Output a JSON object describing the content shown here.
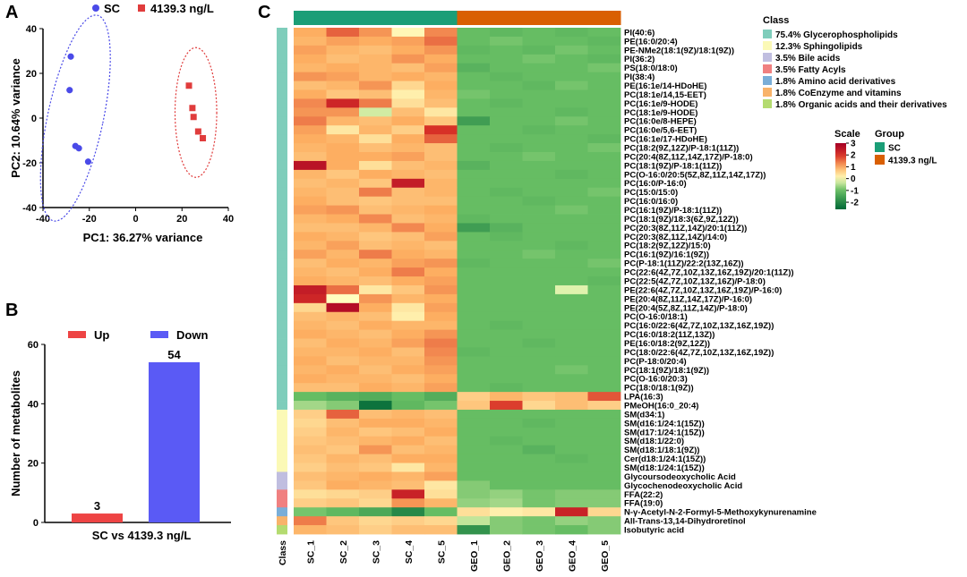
{
  "chart_data": [
    {
      "panel": "A",
      "type": "scatter",
      "xlabel": "PC1: 36.27% variance",
      "ylabel": "PC2: 10.64% variance",
      "xlim": [
        -40,
        40
      ],
      "ylim": [
        -40,
        40
      ],
      "xticks": [
        -40,
        -20,
        0,
        20,
        40
      ],
      "yticks": [
        -40,
        -20,
        0,
        20,
        40
      ],
      "legend_position": "top",
      "series": [
        {
          "name": "SC",
          "color": "#4a4ae8",
          "marker": "circle",
          "points": [
            [
              -28,
              27.5
            ],
            [
              -28.5,
              12.5
            ],
            [
              -26,
              -12.5
            ],
            [
              -24.5,
              -13.5
            ],
            [
              -20.5,
              -19.5
            ]
          ]
        },
        {
          "name": "4139.3 ng/L",
          "color": "#e03c3c",
          "marker": "square",
          "points": [
            [
              23,
              14.5
            ],
            [
              24.5,
              4.5
            ],
            [
              25,
              0.5
            ],
            [
              27,
              -6
            ],
            [
              29,
              -9
            ]
          ]
        }
      ]
    },
    {
      "panel": "B",
      "type": "bar",
      "ylabel": "Number of metabolites",
      "xlabel": "SC vs 4139.3 ng/L",
      "ylim": [
        0,
        60
      ],
      "yticks": [
        0,
        20,
        40,
        60
      ],
      "legend_position": "top",
      "series": [
        {
          "name": "Up",
          "value": 3,
          "color": "#ee4444"
        },
        {
          "name": "Down",
          "value": 54,
          "color": "#5a5af5"
        }
      ]
    },
    {
      "panel": "C",
      "type": "heatmap",
      "columns": [
        "SC_1",
        "SC_2",
        "SC_3",
        "SC_4",
        "SC_5",
        "GEO_1",
        "GEO_2",
        "GEO_3",
        "GEO_4",
        "GEO_5"
      ],
      "column_groups": [
        "SC",
        "SC",
        "SC",
        "SC",
        "SC",
        "4139.3 ng/L",
        "4139.3 ng/L",
        "4139.3 ng/L",
        "4139.3 ng/L",
        "4139.3 ng/L"
      ],
      "class_axis_label": "Class",
      "rows": [
        "PI(40:6)",
        "PE(16:0/20:4)",
        "PE-NMe2(18:1(9Z)/18:1(9Z))",
        "PI(36:2)",
        "PS(18:0/18:0)",
        "PI(38:4)",
        "PE(16:1e/14-HDoHE)",
        "PC(18:1e/14,15-EET)",
        "PC(16:1e/9-HODE)",
        "PC(18:1e/9-HODE)",
        "PC(16:0e/8-HEPE)",
        "PC(16:0e/5,6-EET)",
        "PC(16:1e/17-HDoHE)",
        "PC(18:2(9Z,12Z)/P-18:1(11Z))",
        "PC(20:4(8Z,11Z,14Z,17Z)/P-18:0)",
        "PC(18:1(9Z)/P-18:1(11Z))",
        "PC(O-16:0/20:5(5Z,8Z,11Z,14Z,17Z))",
        "PC(16:0/P-16:0)",
        "PC(15:0/15:0)",
        "PC(16:0/16:0)",
        "PC(16:1(9Z)/P-18:1(11Z))",
        "PC(18:1(9Z)/18:3(6Z,9Z,12Z))",
        "PC(20:3(8Z,11Z,14Z)/20:1(11Z))",
        "PC(20:3(8Z,11Z,14Z)/14:0)",
        "PC(18:2(9Z,12Z)/15:0)",
        "PC(16:1(9Z)/16:1(9Z))",
        "PC(P-18:1(11Z)/22:2(13Z,16Z))",
        "PC(22:6(4Z,7Z,10Z,13Z,16Z,19Z)/20:1(11Z))",
        "PC(22:5(4Z,7Z,10Z,13Z,16Z)/P-18:0)",
        "PE(22:6(4Z,7Z,10Z,13Z,16Z,19Z)/P-16:0)",
        "PE(20:4(8Z,11Z,14Z,17Z)/P-16:0)",
        "PE(20:4(5Z,8Z,11Z,14Z)/P-18:0)",
        "PC(O-16:0/18:1)",
        "PC(16:0/22:6(4Z,7Z,10Z,13Z,16Z,19Z))",
        "PC(16:0/18:2(11Z,13Z))",
        "PE(16:0/18:2(9Z,12Z))",
        "PC(18:0/22:6(4Z,7Z,10Z,13Z,16Z,19Z))",
        "PC(P-18:0/20:4)",
        "PC(18:1(9Z)/18:1(9Z))",
        "PC(O-16:0/20:3)",
        "PC(18:0/18:1(9Z))",
        "LPA(16:3)",
        "PMeOH(16:0_20:4)",
        "SM(d34:1)",
        "SM(d16:1/24:1(15Z))",
        "SM(d17:1/24:1(15Z))",
        "SM(d18:1/22:0)",
        "SM(d18:1/18:1(9Z))",
        "Cer(d18:1/24:1(15Z))",
        "SM(d18:1/24:1(15Z))",
        "Glycoursodeoxycholic Acid",
        "Glycochenodeoxycholic Acid",
        "FFA(22:2)",
        "FFA(19:0)",
        "N-γ-Acetyl-N-2-Formyl-5-Methoxykynurenamine",
        "All-Trans-13,14-Dihydroretinol",
        "Isobutyric acid"
      ],
      "row_classes": [
        "Glycerophospholipids",
        "Glycerophospholipids",
        "Glycerophospholipids",
        "Glycerophospholipids",
        "Glycerophospholipids",
        "Glycerophospholipids",
        "Glycerophospholipids",
        "Glycerophospholipids",
        "Glycerophospholipids",
        "Glycerophospholipids",
        "Glycerophospholipids",
        "Glycerophospholipids",
        "Glycerophospholipids",
        "Glycerophospholipids",
        "Glycerophospholipids",
        "Glycerophospholipids",
        "Glycerophospholipids",
        "Glycerophospholipids",
        "Glycerophospholipids",
        "Glycerophospholipids",
        "Glycerophospholipids",
        "Glycerophospholipids",
        "Glycerophospholipids",
        "Glycerophospholipids",
        "Glycerophospholipids",
        "Glycerophospholipids",
        "Glycerophospholipids",
        "Glycerophospholipids",
        "Glycerophospholipids",
        "Glycerophospholipids",
        "Glycerophospholipids",
        "Glycerophospholipids",
        "Glycerophospholipids",
        "Glycerophospholipids",
        "Glycerophospholipids",
        "Glycerophospholipids",
        "Glycerophospholipids",
        "Glycerophospholipids",
        "Glycerophospholipids",
        "Glycerophospholipids",
        "Glycerophospholipids",
        "Glycerophospholipids",
        "Glycerophospholipids",
        "Sphingolipids",
        "Sphingolipids",
        "Sphingolipids",
        "Sphingolipids",
        "Sphingolipids",
        "Sphingolipids",
        "Sphingolipids",
        "Bile acids",
        "Bile acids",
        "Fatty Acyls",
        "Fatty Acyls",
        "Amino acid derivatives",
        "CoEnzyme and vitamins",
        "Organic acids and their derivatives"
      ],
      "values": [
        [
          1.0,
          1.6,
          1.2,
          0.1,
          1.3,
          -1.0,
          -1.1,
          -1.0,
          -1.1,
          -1.0
        ],
        [
          0.9,
          1.1,
          1.0,
          1.1,
          1.5,
          -1.0,
          -0.9,
          -1.0,
          -1.0,
          -1.1
        ],
        [
          1.1,
          0.9,
          0.8,
          1.0,
          1.2,
          -1.1,
          -1.0,
          -1.1,
          -0.9,
          -1.0
        ],
        [
          1.0,
          0.8,
          0.9,
          1.2,
          1.0,
          -1.0,
          -1.0,
          -0.9,
          -1.0,
          -1.1
        ],
        [
          0.9,
          1.0,
          0.9,
          0.8,
          1.1,
          -1.2,
          -1.0,
          -1.0,
          -1.0,
          -0.9
        ],
        [
          1.2,
          1.1,
          0.9,
          1.0,
          0.9,
          -1.0,
          -1.1,
          -1.0,
          -1.0,
          -1.0
        ],
        [
          0.8,
          0.9,
          1.2,
          0.5,
          1.0,
          -1.0,
          -1.0,
          -1.1,
          -0.9,
          -1.0
        ],
        [
          1.0,
          0.7,
          0.8,
          0.2,
          0.9,
          -0.9,
          -1.0,
          -1.0,
          -1.0,
          -1.0
        ],
        [
          1.3,
          2.2,
          1.4,
          0.4,
          0.8,
          -1.0,
          -1.1,
          -1.0,
          -1.0,
          -1.0
        ],
        [
          1.2,
          1.2,
          -0.3,
          0.8,
          0.3,
          -1.0,
          -1.0,
          -1.0,
          -1.1,
          -1.0
        ],
        [
          1.4,
          0.9,
          0.8,
          1.0,
          0.7,
          -1.6,
          -1.0,
          -1.0,
          -0.9,
          -1.0
        ],
        [
          1.1,
          0.3,
          0.9,
          0.6,
          2.0,
          -1.0,
          -1.0,
          -1.1,
          -1.0,
          -1.0
        ],
        [
          1.0,
          0.9,
          0.4,
          1.0,
          1.6,
          -1.0,
          -1.0,
          -1.0,
          -1.0,
          -1.1
        ],
        [
          0.9,
          1.0,
          0.8,
          0.9,
          0.8,
          -1.0,
          -1.1,
          -1.0,
          -1.0,
          -0.9
        ],
        [
          0.8,
          1.0,
          1.0,
          1.1,
          0.8,
          -1.0,
          -1.0,
          -0.9,
          -1.0,
          -1.0
        ],
        [
          2.6,
          1.0,
          0.4,
          0.8,
          0.9,
          -1.2,
          -1.0,
          -1.0,
          -1.0,
          -1.0
        ],
        [
          0.9,
          0.7,
          1.0,
          0.9,
          0.8,
          -1.0,
          -1.0,
          -1.0,
          -1.1,
          -1.0
        ],
        [
          0.8,
          0.9,
          0.7,
          2.4,
          0.9,
          -1.0,
          -1.0,
          -1.0,
          -1.0,
          -1.0
        ],
        [
          0.9,
          0.8,
          1.4,
          0.8,
          0.9,
          -1.0,
          -1.1,
          -1.0,
          -1.0,
          -0.9
        ],
        [
          1.0,
          0.8,
          0.7,
          0.8,
          0.8,
          -1.0,
          -1.0,
          -1.1,
          -1.0,
          -1.0
        ],
        [
          1.1,
          1.2,
          0.8,
          0.9,
          1.0,
          -1.0,
          -1.0,
          -1.0,
          -0.9,
          -1.0
        ],
        [
          0.9,
          1.0,
          1.3,
          0.8,
          0.9,
          -1.1,
          -1.0,
          -1.0,
          -1.0,
          -1.0
        ],
        [
          0.8,
          0.8,
          0.9,
          1.3,
          1.0,
          -1.6,
          -1.2,
          -1.0,
          -1.0,
          -1.0
        ],
        [
          1.0,
          0.9,
          0.7,
          0.8,
          1.1,
          -1.0,
          -1.1,
          -1.0,
          -1.0,
          -1.0
        ],
        [
          0.9,
          1.1,
          0.8,
          0.9,
          0.8,
          -1.0,
          -1.0,
          -1.0,
          -1.1,
          -1.0
        ],
        [
          1.1,
          0.9,
          1.4,
          1.0,
          0.9,
          -1.0,
          -1.0,
          -0.9,
          -1.0,
          -1.0
        ],
        [
          0.8,
          1.0,
          0.9,
          1.1,
          1.2,
          -1.1,
          -1.0,
          -1.0,
          -1.0,
          -0.9
        ],
        [
          0.9,
          0.8,
          1.0,
          1.4,
          1.0,
          -1.0,
          -1.0,
          -1.0,
          -1.0,
          -1.0
        ],
        [
          1.0,
          0.9,
          0.8,
          1.0,
          1.1,
          -1.0,
          -1.0,
          -1.0,
          -1.0,
          -1.1
        ],
        [
          2.4,
          1.5,
          0.3,
          0.7,
          1.2,
          -1.0,
          -1.0,
          -1.0,
          -0.2,
          -1.0
        ],
        [
          2.2,
          0.0,
          1.2,
          0.9,
          1.0,
          -1.0,
          -1.0,
          -1.0,
          -1.0,
          -1.0
        ],
        [
          0.5,
          2.7,
          1.0,
          0.3,
          1.1,
          -1.0,
          -1.0,
          -1.0,
          -1.0,
          -1.0
        ],
        [
          0.8,
          0.9,
          0.8,
          0.2,
          1.0,
          -1.0,
          -1.0,
          -1.0,
          -1.0,
          -1.0
        ],
        [
          0.9,
          0.8,
          1.0,
          0.9,
          0.9,
          -1.0,
          -1.1,
          -1.0,
          -1.0,
          -1.0
        ],
        [
          1.0,
          0.9,
          0.8,
          1.0,
          1.2,
          -1.0,
          -1.0,
          -1.0,
          -1.0,
          -1.0
        ],
        [
          0.8,
          1.0,
          0.9,
          1.1,
          1.4,
          -1.0,
          -1.0,
          -1.1,
          -1.0,
          -1.0
        ],
        [
          0.9,
          0.9,
          1.0,
          0.8,
          1.3,
          -1.1,
          -1.0,
          -1.0,
          -1.0,
          -1.0
        ],
        [
          1.0,
          0.8,
          0.9,
          0.9,
          1.2,
          -1.0,
          -1.0,
          -1.0,
          -1.0,
          -1.0
        ],
        [
          0.9,
          1.0,
          0.8,
          1.0,
          1.1,
          -1.0,
          -1.0,
          -1.0,
          -0.9,
          -1.0
        ],
        [
          1.0,
          0.9,
          0.9,
          0.8,
          1.0,
          -1.0,
          -1.0,
          -1.0,
          -1.0,
          -1.0
        ],
        [
          0.8,
          0.8,
          1.0,
          0.9,
          1.1,
          -1.0,
          -1.1,
          -1.0,
          -1.0,
          -1.0
        ],
        [
          -1.0,
          -1.2,
          -1.3,
          -1.0,
          -1.3,
          0.6,
          0.9,
          0.7,
          0.8,
          1.7
        ],
        [
          -0.6,
          -0.8,
          -2.4,
          -1.1,
          -0.9,
          0.7,
          1.9,
          0.5,
          0.8,
          0.6
        ],
        [
          0.6,
          1.6,
          0.8,
          0.9,
          0.8,
          -1.0,
          -1.0,
          -1.0,
          -1.0,
          -1.0
        ],
        [
          0.5,
          0.8,
          1.0,
          1.0,
          0.9,
          -1.0,
          -1.0,
          -1.1,
          -1.0,
          -1.0
        ],
        [
          0.6,
          0.9,
          0.7,
          0.8,
          1.0,
          -1.0,
          -1.0,
          -1.0,
          -1.0,
          -1.0
        ],
        [
          0.7,
          0.8,
          0.9,
          1.0,
          0.8,
          -1.0,
          -1.1,
          -1.0,
          -1.0,
          -1.0
        ],
        [
          0.8,
          0.7,
          1.2,
          0.8,
          0.9,
          -1.0,
          -1.0,
          -1.2,
          -1.0,
          -1.0
        ],
        [
          0.7,
          0.9,
          0.8,
          1.0,
          1.0,
          -1.0,
          -1.0,
          -1.0,
          -1.1,
          -1.0
        ],
        [
          0.6,
          0.8,
          0.7,
          0.3,
          0.9,
          -1.0,
          -1.0,
          -1.0,
          -1.0,
          -1.0
        ],
        [
          0.8,
          0.9,
          1.0,
          0.9,
          1.1,
          -1.0,
          -1.0,
          -1.0,
          -1.0,
          -1.0
        ],
        [
          0.7,
          1.0,
          0.9,
          0.8,
          0.3,
          -0.8,
          -1.0,
          -1.0,
          -1.0,
          -1.0
        ],
        [
          0.4,
          0.5,
          0.6,
          2.3,
          0.4,
          -0.8,
          -0.7,
          -0.9,
          -0.8,
          -0.8
        ],
        [
          0.6,
          0.7,
          0.5,
          1.2,
          0.9,
          -0.7,
          -0.6,
          -0.9,
          -0.8,
          -0.8
        ],
        [
          -0.9,
          -1.1,
          -1.4,
          -2.0,
          -1.0,
          0.4,
          0.2,
          0.3,
          2.3,
          0.5
        ],
        [
          1.4,
          0.7,
          0.5,
          0.6,
          0.5,
          -0.4,
          -0.8,
          -0.9,
          -0.7,
          -0.8
        ],
        [
          0.9,
          0.8,
          0.6,
          0.8,
          0.8,
          -1.8,
          -0.8,
          -0.9,
          -1.0,
          -0.8
        ]
      ],
      "class_legend": {
        "title": "Class",
        "items": [
          {
            "label": "75.4% Glycerophospholipids",
            "color": "#7fcdbb"
          },
          {
            "label": "12.3% Sphingolipids",
            "color": "#fbf9b6"
          },
          {
            "label": "3.5% Bile acids",
            "color": "#c0bee0"
          },
          {
            "label": "3.5% Fatty Acyls",
            "color": "#f08080"
          },
          {
            "label": "1.8% Amino acid derivatives",
            "color": "#7aaed8"
          },
          {
            "label": "1.8% CoEnzyme and vitamins",
            "color": "#f8b36a"
          },
          {
            "label": "1.8% Organic acids and their derivatives",
            "color": "#b4db70"
          }
        ]
      },
      "class_colors": {
        "Glycerophospholipids": "#7fcdbb",
        "Sphingolipids": "#fbf9b6",
        "Bile acids": "#c0bee0",
        "Fatty Acyls": "#f08080",
        "Amino acid derivatives": "#7aaed8",
        "CoEnzyme and vitamins": "#f8b36a",
        "Organic acids and their derivatives": "#b4db70"
      },
      "scale_legend": {
        "title": "Scale",
        "range": [
          -2,
          3
        ],
        "ticks": [
          "3",
          "2",
          "1",
          "0",
          "-1",
          "-2"
        ]
      },
      "group_legend": {
        "title": "Group",
        "items": [
          {
            "label": "SC",
            "color": "#1b9e77"
          },
          {
            "label": "4139.3 ng/L",
            "color": "#d95f02"
          }
        ]
      }
    }
  ],
  "panel_labels": {
    "a": "A",
    "b": "B",
    "c": "C"
  }
}
